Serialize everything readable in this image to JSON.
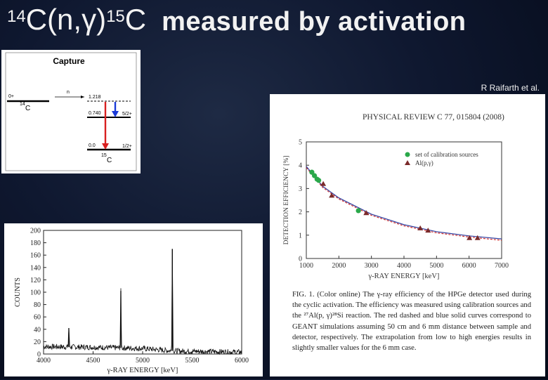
{
  "slide": {
    "title_prefix": {
      "mass_a": "14",
      "nucleus_a": "C(n,",
      "gamma": "γ",
      "mass_b": "15",
      "nucleus_b": ")",
      "nucleus_c": "C"
    },
    "title_word": "measured by activation",
    "credit": "R Raifarth et al."
  },
  "level_scheme": {
    "title": "Capture",
    "ground_spin": "0+",
    "target": "14C",
    "target_mass": "14",
    "target_sym": "C",
    "neutron": "n",
    "levels": [
      {
        "energy": "1.218",
        "spin": ""
      },
      {
        "energy": "0.740",
        "spin": "5/2+"
      },
      {
        "energy": "0.0",
        "spin": "1/2+"
      }
    ],
    "product_mass": "15",
    "product_sym": "C"
  },
  "efficiency_plot": {
    "journal": "PHYSICAL REVIEW C 77, 015804 (2008)",
    "legend": [
      "set of calibration sources",
      "Al(p,γ)"
    ],
    "caption": "FIG. 1. (Color online) The γ-ray efficiency of the HPGe detector used during the cyclic activation. The efficiency was measured using calibration sources and the ²⁷Al(p, γ)²⁸Si reaction. The red dashed and blue solid curves correspond to GEANT simulations assuming 50 cm and 6 mm distance between sample and detector, respectively. The extrapolation from low to high energies results in slightly smaller values for the 6 mm case."
  },
  "chart_data": [
    {
      "type": "scatter",
      "title": "",
      "xlabel": "γ-RAY ENERGY [keV]",
      "ylabel": "DETECTION EFFICIENCY [%]",
      "xlim": [
        1000,
        7000
      ],
      "ylim": [
        0,
        5
      ],
      "xticks": [
        1000,
        2000,
        3000,
        4000,
        5000,
        6000,
        7000
      ],
      "yticks": [
        0,
        1,
        2,
        3,
        4,
        5
      ],
      "series": [
        {
          "name": "set of calibration sources",
          "marker": "circle",
          "color": "#2aa84a",
          "x": [
            1170,
            1250,
            1330,
            1380,
            2600
          ],
          "y": [
            3.7,
            3.55,
            3.4,
            3.35,
            2.05
          ]
        },
        {
          "name": "Al(p,γ)",
          "marker": "triangle",
          "color": "#7a2a2a",
          "x": [
            1520,
            1780,
            2840,
            4500,
            4740,
            6010,
            6260
          ],
          "y": [
            3.2,
            2.7,
            1.95,
            1.3,
            1.2,
            0.88,
            0.88
          ]
        },
        {
          "name": "GEANT 50 cm",
          "style": "dashed",
          "color": "#d03030",
          "x": [
            1000,
            1500,
            2000,
            2500,
            3000,
            4000,
            5000,
            6000,
            7000
          ],
          "y": [
            3.9,
            3.05,
            2.55,
            2.2,
            1.85,
            1.4,
            1.1,
            0.92,
            0.78
          ]
        },
        {
          "name": "GEANT 6 mm",
          "style": "solid",
          "color": "#3040a0",
          "x": [
            1000,
            1500,
            2000,
            2500,
            3000,
            4000,
            5000,
            6000,
            7000
          ],
          "y": [
            3.95,
            3.1,
            2.6,
            2.25,
            1.9,
            1.45,
            1.15,
            0.97,
            0.84
          ]
        }
      ]
    },
    {
      "type": "line",
      "title": "",
      "xlabel": "γ-RAY ENERGY [keV]",
      "ylabel": "COUNTS",
      "xlim": [
        4000,
        6000
      ],
      "ylim": [
        0,
        200
      ],
      "xticks": [
        4000,
        4500,
        5000,
        5500,
        6000
      ],
      "yticks": [
        0,
        20,
        40,
        60,
        80,
        100,
        120,
        140,
        160,
        180,
        200
      ],
      "peaks": [
        {
          "x": 4255,
          "y": 42
        },
        {
          "x": 4780,
          "y": 102
        },
        {
          "x": 5300,
          "y": 170
        }
      ],
      "background": [
        {
          "x": 4000,
          "y": 12
        },
        {
          "x": 4500,
          "y": 11
        },
        {
          "x": 5000,
          "y": 9
        },
        {
          "x": 5300,
          "y": 5
        },
        {
          "x": 6000,
          "y": 3
        }
      ]
    }
  ]
}
